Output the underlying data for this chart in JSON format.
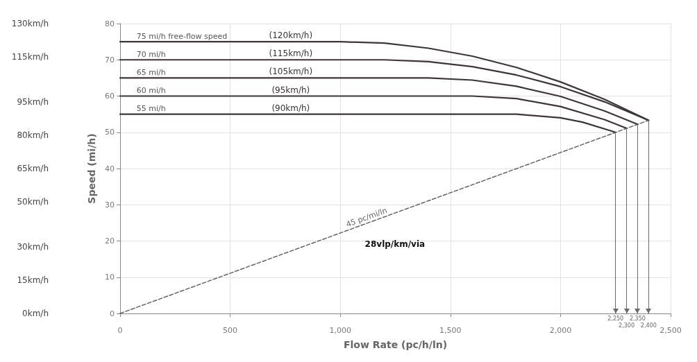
{
  "chart_data": {
    "type": "line",
    "xlabel": "Flow Rate (pc/h/ln)",
    "ylabel": "Speed (mi/h)",
    "xlim": [
      0,
      2500
    ],
    "xticks": [
      0,
      500,
      {
        "value": 1000,
        "label": "1,000"
      },
      {
        "value": 1500,
        "label": "1,500"
      },
      {
        "value": 2000,
        "label": "2,000"
      },
      {
        "value": 2500,
        "label": "2,500"
      }
    ],
    "ylim": [
      0,
      80
    ],
    "yticks": [
      0,
      10,
      20,
      30,
      40,
      50,
      60,
      70,
      80
    ],
    "y2lim": [
      0,
      130
    ],
    "y2ticks": [
      {
        "value": 0,
        "label": "0km/h"
      },
      {
        "value": 15,
        "label": "15km/h"
      },
      {
        "value": 30,
        "label": "30km/h"
      },
      {
        "value": 50,
        "label": "50km/h"
      },
      {
        "value": 65,
        "label": "65km/h"
      },
      {
        "value": 80,
        "label": "80km/h"
      },
      {
        "value": 95,
        "label": "95km/h"
      },
      {
        "value": 115,
        "label": "115km/h"
      },
      {
        "value": 130,
        "label": "130km/h"
      }
    ],
    "grid": true,
    "marker": "none",
    "series": [
      {
        "name": "75 mi/h free-flow speed",
        "color": "#3d3537",
        "line_style": "solid",
        "x": [
          0,
          1000,
          1200,
          1400,
          1600,
          1800,
          2000,
          2200,
          2400
        ],
        "values": [
          75,
          75,
          74.6,
          73.2,
          71,
          67.9,
          63.9,
          59.1,
          53.3
        ]
      },
      {
        "name": "70 mi/h",
        "color": "#3d3537",
        "line_style": "solid",
        "x": [
          0,
          1200,
          1400,
          1600,
          1800,
          2000,
          2200,
          2400
        ],
        "values": [
          70,
          70,
          69.5,
          68.1,
          65.8,
          62.6,
          58.4,
          53.3
        ]
      },
      {
        "name": "65 mi/h",
        "color": "#3d3537",
        "line_style": "solid",
        "x": [
          0,
          1400,
          1600,
          1800,
          2000,
          2200,
          2350
        ],
        "values": [
          65,
          65,
          64.4,
          62.7,
          59.9,
          55.9,
          52.2
        ]
      },
      {
        "name": "60 mi/h",
        "color": "#3d3537",
        "line_style": "solid",
        "x": [
          0,
          1600,
          1800,
          2000,
          2200,
          2300
        ],
        "values": [
          60,
          60,
          59.3,
          57.1,
          53.5,
          51.1
        ]
      },
      {
        "name": "55 mi/h",
        "color": "#3d3537",
        "line_style": "solid",
        "x": [
          0,
          1800,
          2000,
          2100,
          2250
        ],
        "values": [
          55,
          55,
          54,
          52.8,
          50
        ]
      },
      {
        "name": "45 pc/mi/ln",
        "color": "#5a5a5a",
        "line_style": "dashed",
        "x": [
          0,
          2400
        ],
        "values": [
          0,
          53.3
        ]
      }
    ],
    "ref_lines": [
      {
        "axis": "x",
        "value": 2250,
        "label": "2,250",
        "color": "#6a6a6a"
      },
      {
        "axis": "x",
        "value": 2300,
        "label": "2,300",
        "color": "#6a6a6a"
      },
      {
        "axis": "x",
        "value": 2350,
        "label": "2,350",
        "color": "#6a6a6a"
      },
      {
        "axis": "x",
        "value": 2400,
        "label": "2,400",
        "color": "#6a6a6a"
      }
    ],
    "annotations": [
      "(120km/h)",
      "(115km/h)",
      "(105km/h)",
      "(95km/h)",
      "(90km/h)",
      "28vlp/km/via"
    ]
  }
}
